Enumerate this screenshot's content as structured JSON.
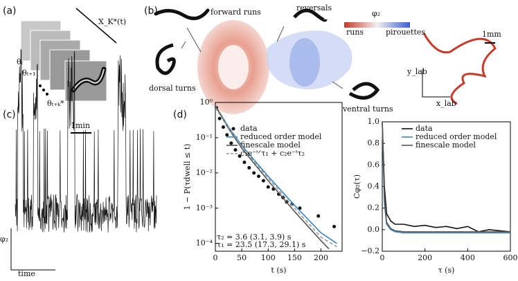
{
  "panels": {
    "a": {
      "label": "(a)",
      "window": "X_K*(t)",
      "theta_t": "θₜ",
      "theta_t1": "θₜ₊₁",
      "theta_tk": "θₜ₊ₖ*"
    },
    "b": {
      "label": "(b)",
      "forward": "forward runs",
      "reversals": "reversals",
      "dorsal": "dorsal turns",
      "ventral": "ventral turns",
      "colorbar_title": "φ₂",
      "colorbar_low": "runs",
      "colorbar_high": "pirouettes",
      "scale": "1mm",
      "ylab": "y_lab",
      "xlab": "x_lab"
    },
    "c": {
      "label": "(c)",
      "scale": "1min",
      "ylabel": "φ₂",
      "xlabel": "time"
    },
    "d": {
      "label": "(d)"
    }
  },
  "chart_data": [
    {
      "type": "line",
      "yscale": "log",
      "xlabel": "t (s)",
      "ylabel": "1 − P(τdwell ≤ t)",
      "xlim": [
        0,
        240
      ],
      "ylim": [
        6e-05,
        1
      ],
      "xticks": [
        0,
        50,
        100,
        150,
        200
      ],
      "yticks": [
        {
          "value": 0.0001,
          "label": "10⁻⁴"
        },
        {
          "value": 0.001,
          "label": "10⁻³"
        },
        {
          "value": 0.01,
          "label": "10⁻²"
        },
        {
          "value": 0.1,
          "label": "10⁻¹"
        },
        {
          "value": 1,
          "label": "10⁰"
        }
      ],
      "annotations": [
        "τ₂ = 3.6 (3.1, 3.9) s",
        "τ₁ = 23.5 (17.3, 29.1) s"
      ],
      "series": [
        {
          "name": "data",
          "color": "#111111",
          "marker": true,
          "x": [
            2,
            8,
            15,
            22,
            30,
            38,
            46,
            55,
            64,
            73,
            82,
            91,
            100,
            110,
            120,
            128,
            135,
            145,
            160,
            195,
            225
          ],
          "values": [
            0.7,
            0.35,
            0.2,
            0.12,
            0.07,
            0.045,
            0.03,
            0.02,
            0.014,
            0.01,
            0.008,
            0.006,
            0.004,
            0.0035,
            0.0025,
            0.002,
            0.0015,
            0.0013,
            0.001,
            0.0006,
            0.0003
          ]
        },
        {
          "name": "reduced order model",
          "color": "#3a86c0",
          "x": [
            0,
            25,
            50,
            100,
            150,
            200,
            230
          ],
          "values": [
            0.8,
            0.2,
            0.06,
            0.008,
            0.0012,
            0.0002,
            0.0001
          ]
        },
        {
          "name": "finescale model",
          "color": "#555555",
          "x": [
            0,
            25,
            50,
            100,
            150,
            200,
            215
          ],
          "values": [
            0.8,
            0.18,
            0.05,
            0.006,
            0.0008,
            0.00012,
            7e-05
          ]
        },
        {
          "name": "c₁e⁻ᵗᐟτ₁ + c₂e⁻ᵗτ₂",
          "color": "#999999",
          "dash": true,
          "x": [
            0,
            25,
            50,
            100,
            150,
            200,
            230
          ],
          "values": [
            0.7,
            0.19,
            0.055,
            0.007,
            0.001,
            0.00015,
            8e-05
          ]
        }
      ]
    },
    {
      "type": "line",
      "xlabel": "τ (s)",
      "ylabel": "Cφ₂(τ)",
      "xlim": [
        0,
        600
      ],
      "ylim": [
        -0.2,
        1.0
      ],
      "xticks": [
        0,
        200,
        400,
        600
      ],
      "yticks": [
        {
          "value": -0.2,
          "label": "−0.2"
        },
        {
          "value": 0,
          "label": "0.0"
        },
        0.2,
        0.4,
        0.6,
        0.8,
        {
          "value": 1,
          "label": "1.0"
        }
      ],
      "series": [
        {
          "name": "data",
          "color": "#111111",
          "x": [
            0,
            10,
            20,
            40,
            60,
            100,
            150,
            200,
            250,
            300,
            350,
            400,
            450,
            500,
            550,
            600
          ],
          "values": [
            1,
            0.4,
            0.15,
            0.08,
            0.05,
            0.05,
            0.03,
            0.04,
            0.02,
            0.03,
            0.01,
            0.03,
            -0.02,
            0,
            -0.01,
            -0.02
          ]
        },
        {
          "name": "reduced order model",
          "color": "#3a86c0",
          "x": [
            0,
            10,
            20,
            40,
            60,
            100,
            200,
            300,
            400,
            500,
            600
          ],
          "values": [
            1,
            0.25,
            0.05,
            0,
            -0.02,
            -0.03,
            -0.03,
            -0.03,
            -0.03,
            -0.03,
            -0.03
          ]
        },
        {
          "name": "finescale model",
          "color": "#555555",
          "x": [
            0,
            10,
            20,
            40,
            60,
            100,
            200,
            300,
            400,
            500,
            600
          ],
          "values": [
            1,
            0.3,
            0.07,
            0.01,
            -0.01,
            -0.02,
            -0.02,
            -0.02,
            -0.02,
            -0.02,
            -0.02
          ]
        }
      ]
    }
  ]
}
